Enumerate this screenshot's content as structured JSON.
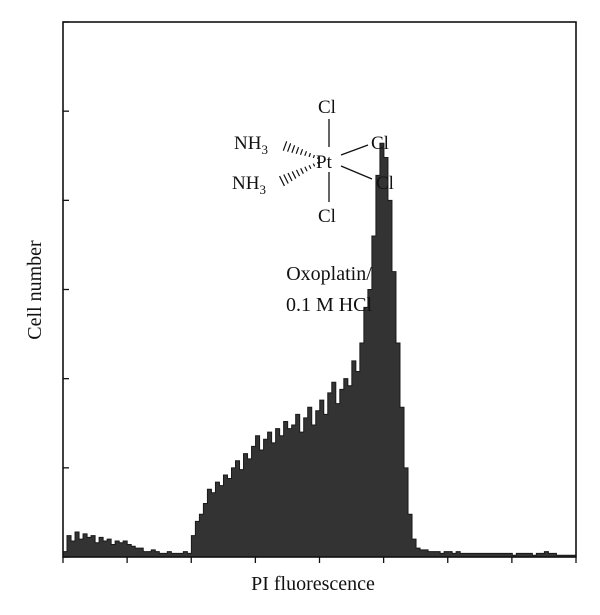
{
  "chart_data": {
    "type": "area",
    "xlabel": "PI fluorescence",
    "ylabel": "Cell number",
    "annotation": [
      "Oxoplatin/",
      "0.1 M HCl"
    ],
    "structure": {
      "center": "Pt",
      "ligands": [
        "Cl",
        "Cl",
        "Cl",
        "Cl"
      ],
      "amines": [
        "NH",
        "NH"
      ],
      "amine_subscript": "3"
    },
    "xlim": [
      0,
      1023
    ],
    "ylim": [
      0,
      300
    ],
    "fill_color": "#333333",
    "x": [
      0,
      8,
      16,
      24,
      32,
      40,
      48,
      56,
      64,
      72,
      80,
      88,
      96,
      104,
      112,
      120,
      128,
      136,
      144,
      152,
      160,
      168,
      176,
      184,
      192,
      200,
      208,
      216,
      224,
      232,
      240,
      248,
      256,
      264,
      272,
      280,
      288,
      296,
      304,
      312,
      320,
      328,
      336,
      344,
      352,
      360,
      368,
      376,
      384,
      392,
      400,
      408,
      416,
      424,
      432,
      440,
      448,
      456,
      464,
      472,
      480,
      488,
      496,
      504,
      512,
      520,
      528,
      536,
      544,
      552,
      560,
      568,
      576,
      584,
      592,
      600,
      608,
      616,
      624,
      632,
      640,
      648,
      656,
      664,
      672,
      680,
      688,
      696,
      704,
      712,
      720,
      728,
      736,
      744,
      752,
      760,
      768,
      776,
      784,
      792,
      800,
      808,
      816,
      824,
      832,
      840,
      848,
      856,
      864,
      872,
      880,
      888,
      896,
      904,
      912,
      920,
      928,
      936,
      944,
      952,
      960,
      968,
      976,
      984,
      992,
      1000,
      1008,
      1016,
      1023
    ],
    "y": [
      3,
      12,
      9,
      14,
      10,
      13,
      11,
      12,
      8,
      11,
      9,
      10,
      7,
      9,
      8,
      9,
      7,
      6,
      5,
      5,
      3,
      3,
      4,
      3,
      2,
      2,
      3,
      2,
      2,
      2,
      3,
      2,
      12,
      20,
      24,
      30,
      38,
      36,
      42,
      40,
      46,
      44,
      50,
      54,
      49,
      58,
      55,
      62,
      68,
      60,
      66,
      70,
      64,
      72,
      68,
      76,
      72,
      74,
      80,
      70,
      78,
      84,
      74,
      82,
      88,
      80,
      92,
      98,
      86,
      94,
      100,
      96,
      110,
      104,
      120,
      140,
      150,
      180,
      214,
      232,
      224,
      200,
      160,
      120,
      84,
      50,
      24,
      10,
      5,
      4,
      4,
      3,
      3,
      3,
      2,
      3,
      3,
      2,
      3,
      2,
      2,
      2,
      2,
      2,
      2,
      2,
      2,
      2,
      2,
      2,
      2,
      2,
      1,
      2,
      2,
      2,
      2,
      1,
      2,
      2,
      3,
      2,
      2,
      1,
      1,
      1,
      1,
      1,
      1
    ]
  }
}
